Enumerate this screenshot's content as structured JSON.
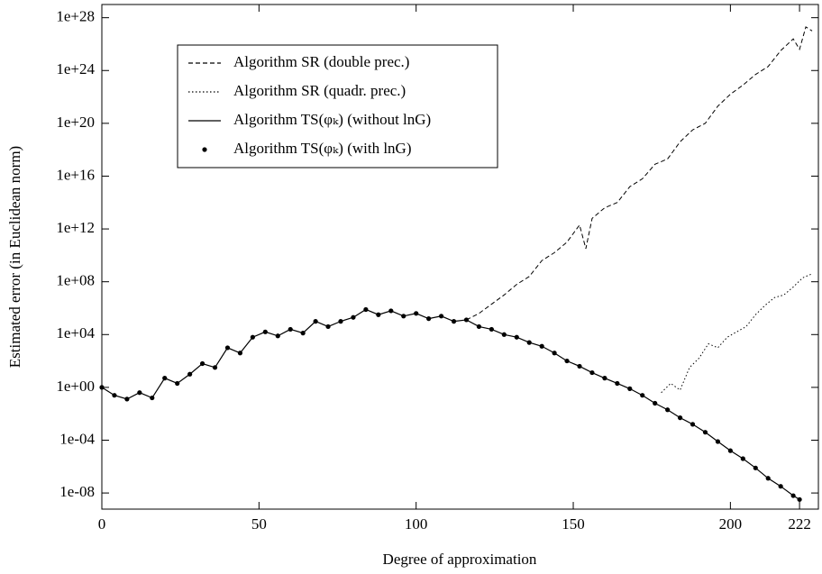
{
  "chart_data": {
    "type": "line",
    "xlabel": "Degree of approximation",
    "ylabel": "Estimated error (in Euclidean norm)",
    "xlim": [
      0,
      228
    ],
    "xticks": [
      0,
      50,
      100,
      150,
      200,
      222
    ],
    "ylim": [
      6e-10,
      1e+29
    ],
    "yscale": "log",
    "yticks": [
      {
        "value": 1e-08,
        "label": "1e-08"
      },
      {
        "value": 0.0001,
        "label": "1e-04"
      },
      {
        "value": 1,
        "label": "1e+00"
      },
      {
        "value": 10000.0,
        "label": "1e+04"
      },
      {
        "value": 100000000.0,
        "label": "1e+08"
      },
      {
        "value": 1000000000000.0,
        "label": "1e+12"
      },
      {
        "value": 1e+16,
        "label": "1e+16"
      },
      {
        "value": 1e+20,
        "label": "1e+20"
      },
      {
        "value": 1e+24,
        "label": "1e+24"
      },
      {
        "value": 1e+28,
        "label": "1e+28"
      }
    ],
    "legend": "upper left",
    "series": [
      {
        "name": "Algorithm SR (double prec.)",
        "color": "#000000",
        "style": "dashed",
        "x": [
          116,
          120,
          124,
          128,
          132,
          136,
          140,
          144,
          148,
          152,
          154,
          156,
          160,
          164,
          168,
          172,
          176,
          180,
          184,
          188,
          192,
          196,
          200,
          204,
          208,
          212,
          216,
          220,
          222,
          224,
          226
        ],
        "values": [
          130000.0,
          400000.0,
          2000000.0,
          10000000.0,
          63000000.0,
          250000000.0,
          4000000000.0,
          16000000000.0,
          100000000000.0,
          2000000000000.0,
          32000000000.0,
          6300000000000.0,
          40000000000000.0,
          100000000000000.0,
          1600000000000000.0,
          6300000000000000.0,
          7.9e+16,
          2e+17,
          4e+18,
          3.2e+19,
          1e+20,
          2e+21,
          1.6e+22,
          7.9e+22,
          5e+23,
          2e+24,
          3.2e+25,
          2.5e+26,
          4e+25,
          2e+27,
          1e+27
        ]
      },
      {
        "name": "Algorithm SR (quadr. prec.)",
        "color": "#000000",
        "style": "dotted",
        "x": [
          178,
          181,
          184,
          187,
          190,
          193,
          196,
          199,
          202,
          205,
          208,
          211,
          214,
          217,
          220,
          223,
          226
        ],
        "values": [
          0.4,
          2,
          0.63,
          32,
          160,
          2000,
          1000,
          6300,
          16000,
          40000,
          320000.0,
          1600000.0,
          6300000.0,
          10000000.0,
          40000000.0,
          200000000.0,
          400000000.0
        ]
      },
      {
        "name": "Algorithm TS(φₖ) (without lnG)",
        "color": "#000000",
        "style": "solid",
        "x": [
          0,
          4,
          8,
          12,
          16,
          20,
          24,
          28,
          32,
          36,
          40,
          44,
          48,
          52,
          56,
          60,
          64,
          68,
          72,
          76,
          80,
          84,
          88,
          92,
          96,
          100,
          104,
          108,
          112,
          116,
          120,
          124,
          128,
          132,
          136,
          140,
          144,
          148,
          152,
          156,
          160,
          164,
          168,
          172,
          176,
          180,
          184,
          188,
          192,
          196,
          200,
          204,
          208,
          212,
          216,
          220,
          222
        ],
        "values": [
          1,
          0.25,
          0.13,
          0.4,
          0.16,
          5,
          2,
          10,
          63,
          32,
          1000,
          400,
          6300,
          16000,
          7900,
          25000,
          13000,
          100000.0,
          40000,
          100000.0,
          200000.0,
          790000.0,
          320000.0,
          630000.0,
          250000.0,
          400000.0,
          160000.0,
          250000.0,
          100000.0,
          130000.0,
          40000,
          25000,
          10000,
          6300,
          2500,
          1300,
          400,
          100,
          40,
          13,
          5,
          2,
          0.79,
          0.25,
          0.063,
          0.02,
          0.005,
          0.0016,
          0.0004,
          7.9e-05,
          1.6e-05,
          4e-06,
          7.9e-07,
          1.3e-07,
          3.2e-08,
          6.3e-09,
          3.2e-09
        ]
      },
      {
        "name": "Algorithm TS(φₖ) (with lnG)",
        "color": "#000000",
        "style": "markers",
        "x": [
          0,
          4,
          8,
          12,
          16,
          20,
          24,
          28,
          32,
          36,
          40,
          44,
          48,
          52,
          56,
          60,
          64,
          68,
          72,
          76,
          80,
          84,
          88,
          92,
          96,
          100,
          104,
          108,
          112,
          116,
          120,
          124,
          128,
          132,
          136,
          140,
          144,
          148,
          152,
          156,
          160,
          164,
          168,
          172,
          176,
          180,
          184,
          188,
          192,
          196,
          200,
          204,
          208,
          212,
          216,
          220,
          222
        ],
        "values": [
          1,
          0.25,
          0.13,
          0.4,
          0.16,
          5,
          2,
          10,
          63,
          32,
          1000,
          400,
          6300,
          16000,
          7900,
          25000,
          13000,
          100000.0,
          40000,
          100000.0,
          200000.0,
          790000.0,
          320000.0,
          630000.0,
          250000.0,
          400000.0,
          160000.0,
          250000.0,
          100000.0,
          130000.0,
          40000,
          25000,
          10000,
          6300,
          2500,
          1300,
          400,
          100,
          40,
          13,
          5,
          2,
          0.79,
          0.25,
          0.063,
          0.02,
          0.005,
          0.0016,
          0.0004,
          7.9e-05,
          1.6e-05,
          4e-06,
          7.9e-07,
          1.3e-07,
          3.2e-08,
          6.3e-09,
          3.2e-09
        ]
      }
    ]
  }
}
